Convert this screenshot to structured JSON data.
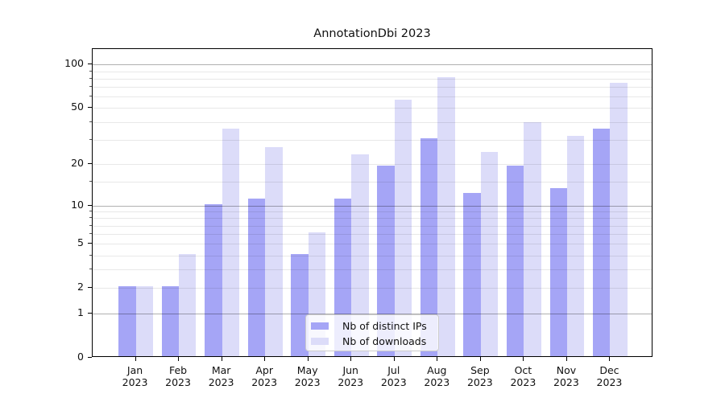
{
  "chart_data": {
    "type": "bar",
    "title": "AnnotationDbi 2023",
    "categories": [
      "Jan",
      "Feb",
      "Mar",
      "Apr",
      "May",
      "Jun",
      "Jul",
      "Aug",
      "Sep",
      "Oct",
      "Nov",
      "Dec"
    ],
    "category_year": "2023",
    "series": [
      {
        "name": "Nb of distinct IPs",
        "key": "distinct-ips",
        "color": "#a5a5f6",
        "values": [
          2,
          2,
          10,
          11,
          4,
          11,
          19,
          30,
          12,
          19,
          13,
          35
        ]
      },
      {
        "name": "Nb of downloads",
        "key": "downloads",
        "color": "#dcdcf9",
        "values": [
          2,
          4,
          35,
          26,
          6,
          23,
          56,
          80,
          24,
          39,
          31,
          73
        ]
      }
    ],
    "y_scale": "log10(1+value)",
    "ylim": [
      0,
      128
    ],
    "y_ticks_labeled": [
      0,
      1,
      2,
      5,
      10,
      20,
      50,
      100
    ],
    "y_ticks_minor": [
      3,
      4,
      6,
      7,
      8,
      9,
      15,
      30,
      40,
      60,
      70,
      80,
      90
    ],
    "y_major_gridlines": [
      1,
      10,
      100
    ],
    "xlabel": "",
    "ylabel": "",
    "grid": "horizontal, drawn above bars",
    "legend_position": "lower center"
  },
  "colors": {
    "grid_major": "#b0b0b0",
    "grid_minor": "#e9e9e9",
    "axis": "#000000",
    "legend_border": "#cccccc",
    "background": "#ffffff"
  }
}
